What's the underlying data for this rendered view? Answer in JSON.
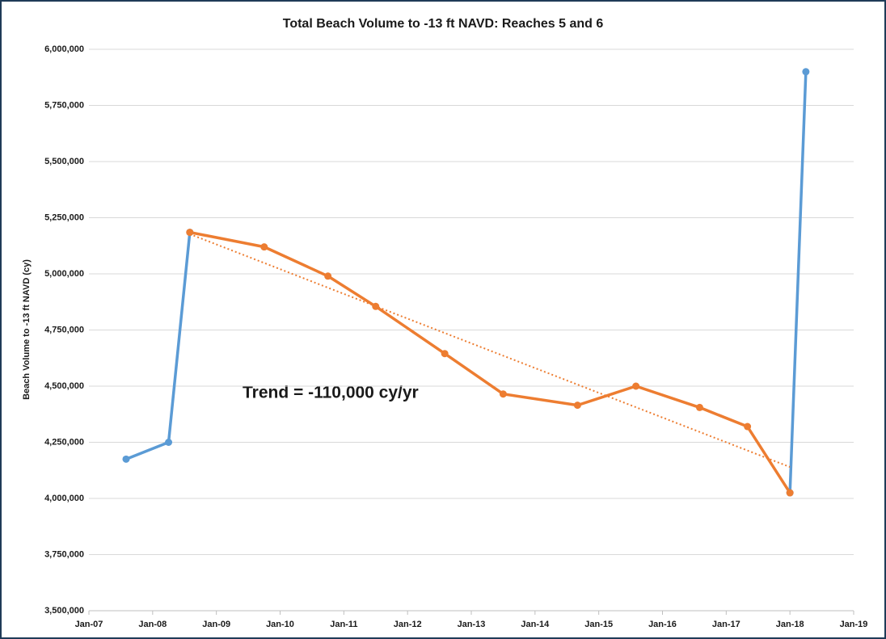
{
  "chart_data": {
    "type": "line",
    "title": "Total Beach Volume to -13 ft NAVD: Reaches 5 and 6",
    "y_label": "Beach Volume to -13 ft NAVD (cy)",
    "annotation": "Trend = -110,000 cy/yr",
    "x": [
      "2007-08",
      "2008-04",
      "2008-08",
      "2009-10",
      "2010-10",
      "2011-07",
      "2012-08",
      "2013-07",
      "2014-09",
      "2015-08",
      "2016-08",
      "2017-05",
      "2018-01",
      "2018-04"
    ],
    "series": [
      {
        "color": "#5b9bd5",
        "values": [
          4175000,
          4250000,
          5185000,
          null,
          null,
          null,
          null,
          null,
          null,
          null,
          null,
          null,
          4025000,
          5900000
        ]
      },
      {
        "color": "#ed7d31",
        "values": [
          null,
          null,
          5185000,
          5120000,
          4990000,
          4855000,
          4645000,
          4465000,
          4415000,
          4500000,
          4405000,
          4320000,
          4025000,
          null
        ]
      }
    ],
    "trendline": {
      "color": "#ed7d31",
      "x": [
        "2008-08",
        "2018-01"
      ],
      "values": [
        5177000,
        4140000
      ]
    },
    "xlim": [
      "2007-01",
      "2019-01"
    ],
    "xticks": [
      {
        "value": "2007-01",
        "label": "Jan-07"
      },
      {
        "value": "2008-01",
        "label": "Jan-08"
      },
      {
        "value": "2009-01",
        "label": "Jan-09"
      },
      {
        "value": "2010-01",
        "label": "Jan-10"
      },
      {
        "value": "2011-01",
        "label": "Jan-11"
      },
      {
        "value": "2012-01",
        "label": "Jan-12"
      },
      {
        "value": "2013-01",
        "label": "Jan-13"
      },
      {
        "value": "2014-01",
        "label": "Jan-14"
      },
      {
        "value": "2015-01",
        "label": "Jan-15"
      },
      {
        "value": "2016-01",
        "label": "Jan-16"
      },
      {
        "value": "2017-01",
        "label": "Jan-17"
      },
      {
        "value": "2018-01",
        "label": "Jan-18"
      },
      {
        "value": "2019-01",
        "label": "Jan-19"
      }
    ],
    "ylim": [
      3500000,
      6000000
    ],
    "yticks": [
      {
        "value": 3500000,
        "label": "3,500,000"
      },
      {
        "value": 3750000,
        "label": "3,750,000"
      },
      {
        "value": 4000000,
        "label": "4,000,000"
      },
      {
        "value": 4250000,
        "label": "4,250,000"
      },
      {
        "value": 4500000,
        "label": "4,500,000"
      },
      {
        "value": 4750000,
        "label": "4,750,000"
      },
      {
        "value": 5000000,
        "label": "5,000,000"
      },
      {
        "value": 5250000,
        "label": "5,250,000"
      },
      {
        "value": 5500000,
        "label": "5,500,000"
      },
      {
        "value": 5750000,
        "label": "5,750,000"
      },
      {
        "value": 6000000,
        "label": "6,000,000"
      }
    ],
    "grid": true
  }
}
